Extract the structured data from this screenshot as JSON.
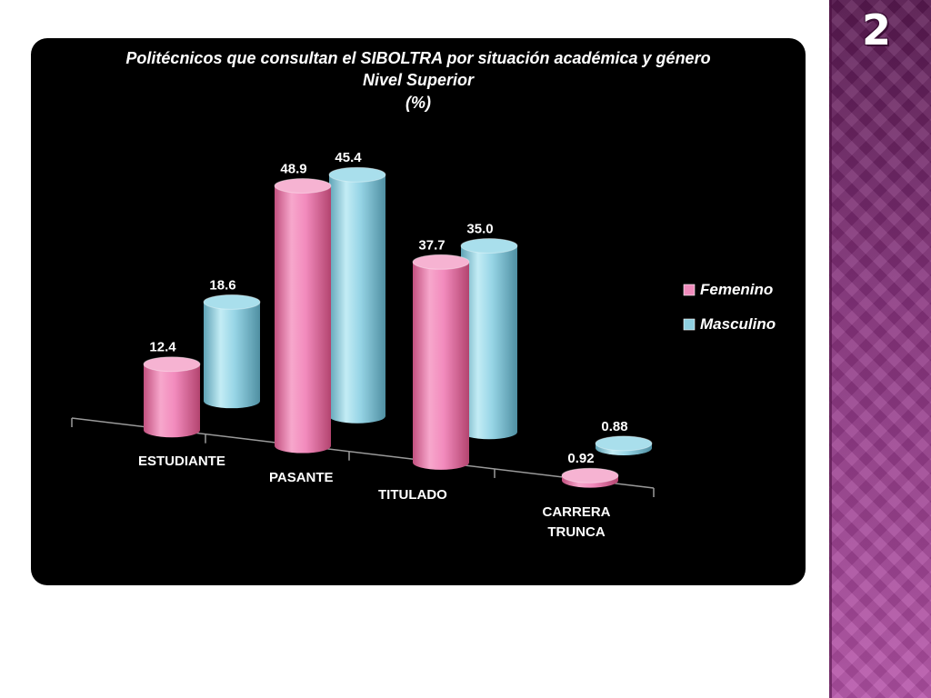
{
  "slide": {
    "number": "2"
  },
  "chart_data": {
    "type": "bar",
    "title": "Politécnicos que consultan el  SIBOLTRA por situación académica y género",
    "subtitle": "Nivel  Superior",
    "unit": "(%)",
    "categories": [
      "ESTUDIANTE",
      "PASANTE",
      "TITULADO",
      "CARRERA TRUNCA"
    ],
    "category_lines": [
      [
        "ESTUDIANTE"
      ],
      [
        "PASANTE"
      ],
      [
        "TITULADO"
      ],
      [
        "CARRERA",
        "TRUNCA"
      ]
    ],
    "series": [
      {
        "name": "Femenino",
        "values": [
          12.4,
          48.9,
          37.7,
          0.92
        ],
        "labels": [
          "12.4",
          "48.9",
          "37.7",
          "0.92"
        ],
        "color": "#f08cbc"
      },
      {
        "name": "Masculino",
        "values": [
          18.6,
          45.4,
          35.0,
          0.88
        ],
        "labels": [
          "18.6",
          "45.4",
          "35.0",
          "0.88"
        ],
        "color": "#8ecfe0"
      }
    ],
    "ylim": [
      0,
      50
    ],
    "legend": "right",
    "style": "3d-cylinder",
    "grid": false
  }
}
